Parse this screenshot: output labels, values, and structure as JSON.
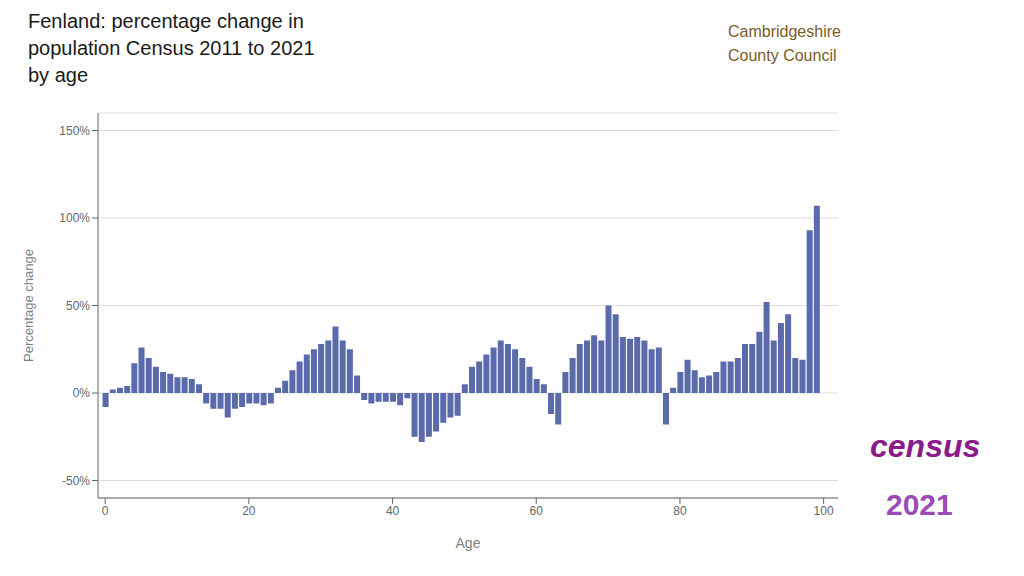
{
  "chart_data": {
    "type": "bar",
    "title": "Fenland: percentage change in\npopulation Census 2011 to 2021\nby age",
    "xlabel": "Age",
    "ylabel": "Percentage change",
    "color": "#5a6aaa",
    "x": [
      0,
      1,
      2,
      3,
      4,
      5,
      6,
      7,
      8,
      9,
      10,
      11,
      12,
      13,
      14,
      15,
      16,
      17,
      18,
      19,
      20,
      21,
      22,
      23,
      24,
      25,
      26,
      27,
      28,
      29,
      30,
      31,
      32,
      33,
      34,
      35,
      36,
      37,
      38,
      39,
      40,
      41,
      42,
      43,
      44,
      45,
      46,
      47,
      48,
      49,
      50,
      51,
      52,
      53,
      54,
      55,
      56,
      57,
      58,
      59,
      60,
      61,
      62,
      63,
      64,
      65,
      66,
      67,
      68,
      69,
      70,
      71,
      72,
      73,
      74,
      75,
      76,
      77,
      78,
      79,
      80,
      81,
      82,
      83,
      84,
      85,
      86,
      87,
      88,
      89,
      90,
      91,
      92,
      93,
      94,
      95,
      96,
      97,
      98,
      99
    ],
    "values": [
      -8,
      2,
      3,
      4,
      17,
      26,
      20,
      15,
      12,
      11,
      9,
      9,
      8,
      5,
      -6,
      -9,
      -9,
      -14,
      -9,
      -8,
      -6,
      -6,
      -7,
      -6,
      3,
      7,
      13,
      18,
      22,
      25,
      28,
      30,
      38,
      30,
      25,
      10,
      -4,
      -6,
      -5,
      -5,
      -5,
      -7,
      -3,
      -25,
      -28,
      -25,
      -22,
      -17,
      -14,
      -13,
      5,
      15,
      18,
      22,
      26,
      30,
      28,
      25,
      20,
      15,
      8,
      5,
      -12,
      -18,
      12,
      20,
      28,
      30,
      33,
      30,
      50,
      45,
      32,
      31,
      32,
      30,
      25,
      26,
      -18,
      3,
      12,
      19,
      13,
      9,
      10,
      12,
      18,
      18,
      20,
      28,
      28,
      35,
      52,
      30,
      40,
      45,
      20,
      19,
      93,
      107
    ],
    "xlim": [
      -1,
      102
    ],
    "xticks": [
      0,
      20,
      40,
      60,
      80,
      100
    ],
    "ylim": [
      -60,
      160
    ],
    "yticks": [
      {
        "value": -50,
        "label": "-50%"
      },
      {
        "value": 0,
        "label": "0%"
      },
      {
        "value": 50,
        "label": "50%"
      },
      {
        "value": 100,
        "label": "100%"
      },
      {
        "value": 150,
        "label": "150%"
      }
    ],
    "grid": true,
    "annotations": [
      {
        "text": "Cambridgeshire\nCounty Council",
        "color": "#7a5c1e"
      },
      {
        "text": "census",
        "color": "#8b1a8b"
      },
      {
        "text": "2021",
        "color": "#9b4bb5"
      }
    ]
  }
}
